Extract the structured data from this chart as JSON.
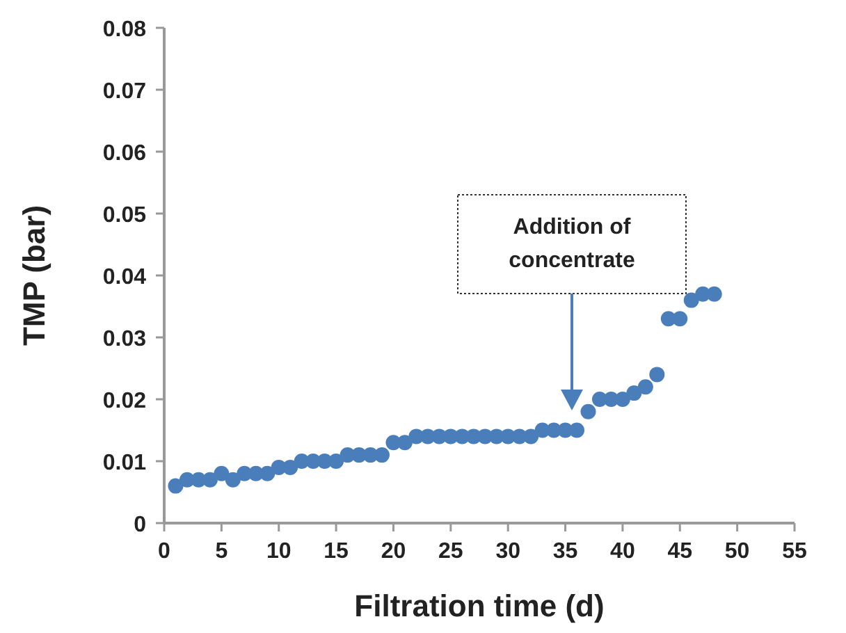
{
  "chart_data": {
    "type": "scatter",
    "xlabel": "Filtration time (d)",
    "ylabel": "TMP (bar)",
    "x": [
      1,
      2,
      3,
      4,
      5,
      6,
      7,
      8,
      9,
      10,
      11,
      12,
      13,
      14,
      15,
      16,
      17,
      18,
      19,
      20,
      21,
      22,
      23,
      24,
      25,
      26,
      27,
      28,
      29,
      30,
      31,
      32,
      33,
      34,
      35,
      36,
      37,
      38,
      39,
      40,
      41,
      42,
      43,
      44,
      45,
      46,
      47,
      48
    ],
    "series": [
      {
        "color": "#4a7ebb",
        "values": [
          0.006,
          0.007,
          0.007,
          0.007,
          0.008,
          0.007,
          0.008,
          0.008,
          0.008,
          0.009,
          0.009,
          0.01,
          0.01,
          0.01,
          0.01,
          0.011,
          0.011,
          0.011,
          0.011,
          0.013,
          0.013,
          0.014,
          0.014,
          0.014,
          0.014,
          0.014,
          0.014,
          0.014,
          0.014,
          0.014,
          0.014,
          0.014,
          0.015,
          0.015,
          0.015,
          0.015,
          0.018,
          0.02,
          0.02,
          0.02,
          0.021,
          0.022,
          0.024,
          0.033,
          0.033,
          0.036,
          0.037,
          0.037
        ]
      }
    ],
    "xlim": [
      0,
      55
    ],
    "xticks": [
      0,
      5,
      10,
      15,
      20,
      25,
      30,
      35,
      40,
      45,
      50,
      55
    ],
    "ylim": [
      0,
      0.08
    ],
    "yticks": [
      0,
      0.01,
      0.02,
      0.03,
      0.04,
      0.05,
      0.06,
      0.07,
      0.08
    ],
    "marker": "circle",
    "grid": false,
    "annotations": [
      "Addition of concentrate"
    ]
  }
}
